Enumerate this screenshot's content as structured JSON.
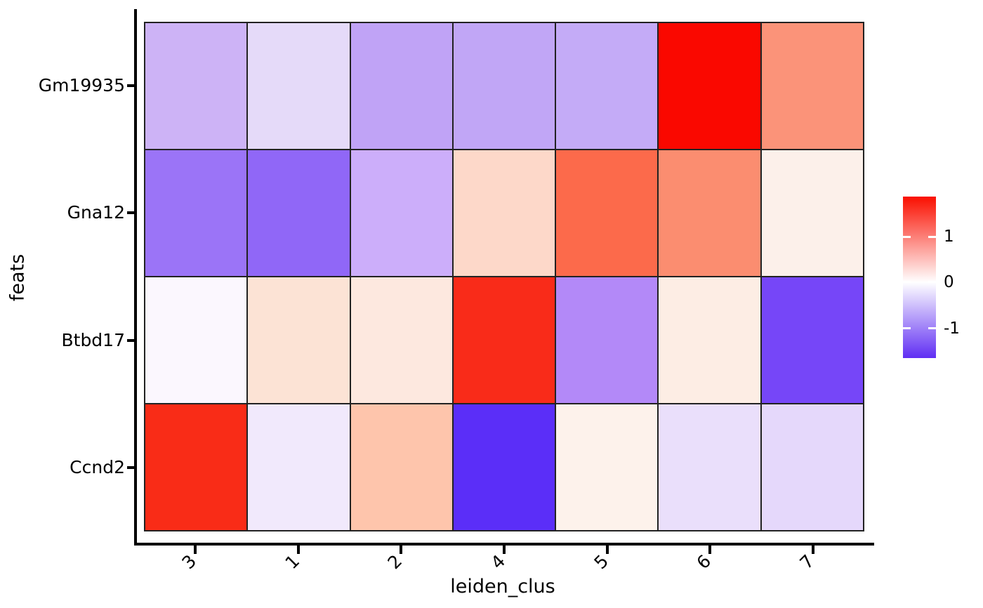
{
  "chart_data": {
    "type": "heatmap",
    "title": "",
    "xlabel": "leiden_clus",
    "ylabel": "feats",
    "x_categories": [
      "3",
      "1",
      "2",
      "4",
      "5",
      "6",
      "7"
    ],
    "y_categories": [
      "Gm19935",
      "Gna12",
      "Btbd17",
      "Ccnd2"
    ],
    "value_range_est": [
      -1.7,
      1.9
    ],
    "series": [
      {
        "name": "Gm19935",
        "values": [
          -0.55,
          -0.28,
          -0.7,
          -0.68,
          -0.63,
          1.9,
          0.9
        ],
        "colors": [
          "#cdb3f6",
          "#e5daf9",
          "#c0a3f6",
          "#c1a6f6",
          "#c4abf7",
          "#fa0800",
          "#fb9379"
        ]
      },
      {
        "name": "Gna12",
        "values": [
          -1.1,
          -1.2,
          -0.6,
          0.35,
          1.25,
          0.95,
          0.1
        ],
        "colors": [
          "#9b74f7",
          "#9067f7",
          "#ccaefa",
          "#fdd8c9",
          "#fc6a4b",
          "#fb8d70",
          "#fcf0ea"
        ]
      },
      {
        "name": "Btbd17",
        "values": [
          -0.05,
          0.27,
          0.2,
          1.65,
          -0.87,
          0.15,
          -1.45
        ],
        "colors": [
          "#fbf7fe",
          "#fce3d5",
          "#fde8df",
          "#f92b19",
          "#b389f8",
          "#fdede4",
          "#7646f8"
        ]
      },
      {
        "name": "Ccnd2",
        "values": [
          1.65,
          -0.17,
          0.55,
          -1.7,
          0.1,
          -0.25,
          -0.3
        ],
        "colors": [
          "#f92c17",
          "#f1e9fc",
          "#fec5ac",
          "#5b2ef8",
          "#fdf2eb",
          "#eadffb",
          "#e5d8fb"
        ]
      }
    ],
    "colorbar": {
      "tick_labels": [
        "1",
        "0",
        "-1"
      ],
      "tick_values": [
        1,
        0,
        -1
      ],
      "tick_positions_pct": [
        24.8,
        53,
        81.7
      ],
      "top_color": "#fa0f00",
      "mid_color": "#ffffff",
      "bottom_color": "#602ef3",
      "white_position_pct": 53
    },
    "style": {
      "cell_border_color": "#222222",
      "axis_color": "#000000",
      "grid_on": false,
      "legend_position": "right"
    }
  }
}
